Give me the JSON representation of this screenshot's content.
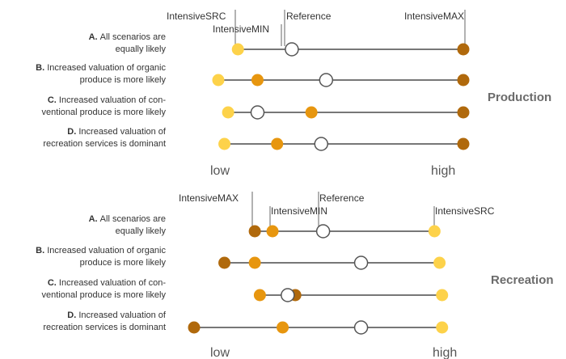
{
  "colors": {
    "IntensiveSRC": "#fdd24a",
    "IntensiveMIN": "#e7960f",
    "IntensiveMAX": "#b0690c",
    "Reference": "#ffffff",
    "line": "#777777",
    "outline": "#555555"
  },
  "panels": [
    {
      "title": "Production",
      "low_label": "low",
      "high_label": "high",
      "header_labels": [
        "IntensiveSRC",
        "IntensiveMIN",
        "Reference",
        "IntensiveMAX"
      ],
      "rows": [
        {
          "letter": "A.",
          "line1": "All scenarios are",
          "line2": "equally likely",
          "values": {
            "IntensiveSRC": 0.08,
            "IntensiveMIN": 0.3,
            "Reference": 0.3,
            "IntensiveMAX": 1.0
          }
        },
        {
          "letter": "B.",
          "line1": "Increased valuation of organic",
          "line2": "produce is more likely",
          "values": {
            "IntensiveSRC": 0.0,
            "IntensiveMIN": 0.16,
            "Reference": 0.44,
            "IntensiveMAX": 1.0
          }
        },
        {
          "letter": "C.",
          "line1": "Increased valuation of con-",
          "line2": "ventional produce is more likely",
          "values": {
            "IntensiveSRC": 0.04,
            "IntensiveMIN": 0.38,
            "Reference": 0.16,
            "IntensiveMAX": 1.0
          }
        },
        {
          "letter": "D.",
          "line1": "Increased valuation of",
          "line2": "recreation services is dominant",
          "values": {
            "IntensiveSRC": 0.025,
            "IntensiveMIN": 0.24,
            "Reference": 0.42,
            "IntensiveMAX": 1.0
          }
        }
      ]
    },
    {
      "title": "Recreation",
      "low_label": "low",
      "high_label": "high",
      "header_labels": [
        "IntensiveMAX",
        "IntensiveMIN",
        "Reference",
        "IntensiveSRC"
      ],
      "rows": [
        {
          "letter": "A.",
          "line1": "All scenarios are",
          "line2": "equally likely",
          "values": {
            "IntensiveMAX": 0.24,
            "IntensiveMIN": 0.31,
            "Reference": 0.51,
            "IntensiveSRC": 0.95
          }
        },
        {
          "letter": "B.",
          "line1": "Increased valuation of organic",
          "line2": "produce is more likely",
          "values": {
            "IntensiveMAX": 0.12,
            "IntensiveMIN": 0.24,
            "Reference": 0.66,
            "IntensiveSRC": 0.97
          }
        },
        {
          "letter": "C.",
          "line1": "Increased valuation of con-",
          "line2": "ventional produce is more likely",
          "values": {
            "IntensiveMAX": 0.4,
            "IntensiveMIN": 0.26,
            "Reference": 0.37,
            "IntensiveSRC": 0.98
          }
        },
        {
          "letter": "D.",
          "line1": "Increased valuation of",
          "line2": "recreation services is dominant",
          "values": {
            "IntensiveMAX": 0.0,
            "IntensiveMIN": 0.35,
            "Reference": 0.66,
            "IntensiveSRC": 0.98
          }
        }
      ]
    }
  ]
}
